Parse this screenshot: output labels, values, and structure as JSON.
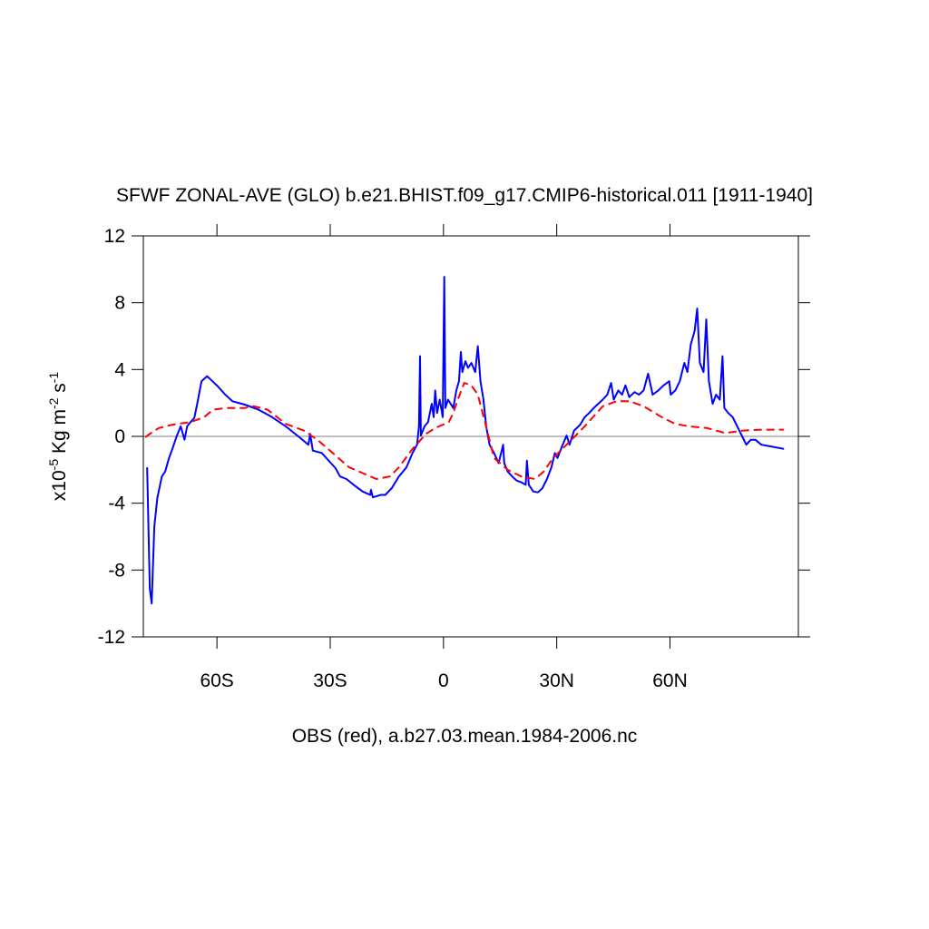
{
  "chart_data": {
    "type": "line",
    "title": "SFWF ZONAL-AVE (GLO) b.e21.BHIST.f09_g17.CMIP6-historical.011 [1911-1940]",
    "ylabel": [
      "x10",
      "-5",
      " Kg m",
      "-2",
      " s",
      "-1"
    ],
    "note": "OBS (red), a.b27.03.mean.1984-2006.nc",
    "xlim": [
      -79.5,
      94
    ],
    "ylim": [
      -12,
      12
    ],
    "xticks": [
      {
        "value": -60,
        "label": "60S"
      },
      {
        "value": -30,
        "label": "30S"
      },
      0,
      {
        "value": 30,
        "label": "30N"
      },
      {
        "value": 60,
        "label": "60N"
      }
    ],
    "yticks": [
      -12,
      -8,
      -4,
      0,
      4,
      8,
      12
    ],
    "hline": 0,
    "series": [
      {
        "color": "#0000ff",
        "dash": false,
        "x": [
          -78.5,
          -77.8,
          -77.3,
          -76.6,
          -75.8,
          -74.6,
          -73.7,
          -72.7,
          -71.8,
          -70.6,
          -69.6,
          -68.6,
          -67.9,
          -67.0,
          -66.0,
          -65.0,
          -64.1,
          -62.6,
          -61.2,
          -59.8,
          -57.8,
          -55.9,
          -52.6,
          -49.0,
          -45.4,
          -41.8,
          -38.2,
          -35.8,
          -35.3,
          -34.6,
          -32.2,
          -29.8,
          -28.6,
          -27.4,
          -25.7,
          -23.8,
          -21.4,
          -19.4,
          -19.2,
          -18.7,
          -16.6,
          -15.4,
          -13.7,
          -11.8,
          -9.8,
          -8.2,
          -7.0,
          -6.5,
          -6.2,
          -6.0,
          -5.0,
          -4.1,
          -3.1,
          -2.6,
          -2.2,
          -1.7,
          -1.0,
          -0.2,
          0.2,
          0.5,
          1.2,
          1.9,
          2.6,
          3.4,
          4.1,
          4.6,
          5.0,
          5.8,
          6.5,
          7.4,
          8.4,
          9.1,
          9.8,
          10.6,
          11.3,
          12.2,
          13.4,
          14.6,
          15.8,
          16.1,
          17.0,
          18.2,
          19.4,
          20.6,
          21.8,
          22.1,
          22.6,
          23.8,
          25.0,
          26.2,
          27.4,
          28.6,
          29.5,
          30.2,
          31.4,
          32.6,
          33.4,
          34.6,
          36.2,
          37.4,
          38.6,
          39.8,
          41.0,
          42.2,
          43.4,
          44.4,
          45.1,
          46.3,
          47.3,
          48.2,
          49.2,
          50.6,
          51.8,
          53.0,
          54.2,
          55.4,
          56.9,
          58.3,
          59.8,
          60.2,
          61.4,
          62.6,
          63.8,
          64.6,
          65.5,
          66.5,
          67.2,
          67.9,
          68.9,
          69.6,
          70.3,
          71.3,
          72.2,
          73.2,
          73.9,
          74.4,
          75.4,
          76.6,
          77.8,
          79.0,
          80.2,
          81.4,
          82.6,
          84.2,
          86.6,
          90.2
        ],
        "values": [
          -1.85,
          -9.1,
          -10.0,
          -5.4,
          -3.7,
          -2.4,
          -2.1,
          -1.3,
          -0.75,
          0.05,
          0.6,
          -0.2,
          0.6,
          0.85,
          1.1,
          2.2,
          3.3,
          3.6,
          3.3,
          3.0,
          2.5,
          2.1,
          1.9,
          1.6,
          1.15,
          0.6,
          -0.05,
          -0.5,
          0.15,
          -0.85,
          -1.0,
          -1.6,
          -1.9,
          -2.4,
          -2.55,
          -2.9,
          -3.3,
          -3.5,
          -3.2,
          -3.65,
          -3.5,
          -3.5,
          -3.1,
          -2.4,
          -1.85,
          -1.0,
          -0.5,
          0.6,
          4.8,
          0.05,
          0.6,
          0.85,
          1.95,
          1.15,
          2.75,
          1.4,
          2.2,
          1.15,
          9.55,
          1.7,
          2.2,
          1.95,
          1.7,
          2.75,
          3.3,
          5.05,
          3.85,
          4.5,
          4.1,
          4.4,
          3.85,
          5.4,
          3.3,
          2.2,
          0.6,
          -0.5,
          -1.0,
          -1.6,
          -0.5,
          -1.6,
          -2.1,
          -2.4,
          -2.65,
          -2.75,
          -2.9,
          -1.45,
          -2.9,
          -3.3,
          -3.35,
          -3.1,
          -2.55,
          -1.85,
          -1.0,
          -1.3,
          -0.6,
          0.05,
          -0.5,
          0.35,
          0.7,
          1.15,
          1.4,
          1.7,
          1.95,
          2.2,
          2.5,
          3.2,
          2.2,
          2.75,
          2.5,
          3.05,
          2.35,
          2.65,
          2.5,
          2.75,
          3.75,
          2.5,
          2.75,
          3.05,
          3.3,
          2.5,
          2.75,
          3.3,
          4.4,
          3.85,
          5.5,
          6.3,
          7.65,
          4.4,
          3.85,
          7.0,
          3.3,
          1.95,
          2.5,
          2.2,
          4.8,
          1.7,
          1.4,
          1.15,
          0.6,
          0.05,
          -0.5,
          -0.2,
          -0.2,
          -0.5,
          -0.6,
          -0.75
        ]
      },
      {
        "color": "#ff0000",
        "dash": true,
        "x": [
          -79.0,
          -77.8,
          -75.4,
          -71.8,
          -67.0,
          -63.4,
          -61.0,
          -57.4,
          -52.6,
          -50.2,
          -46.6,
          -41.8,
          -37.0,
          -33.4,
          -29.8,
          -25.0,
          -21.4,
          -17.8,
          -14.2,
          -11.8,
          -8.2,
          -4.6,
          -2.2,
          1.4,
          2.6,
          3.8,
          5.5,
          7.4,
          9.1,
          11.0,
          13.4,
          17.0,
          20.6,
          24.2,
          26.6,
          29.0,
          32.6,
          37.4,
          42.2,
          45.8,
          49.4,
          53.0,
          57.8,
          61.4,
          65.0,
          69.8,
          74.6,
          79.4,
          84.2,
          90.2
        ],
        "values": [
          -0.05,
          0.15,
          0.5,
          0.7,
          0.85,
          1.15,
          1.6,
          1.7,
          1.7,
          1.8,
          1.6,
          0.75,
          0.35,
          -0.2,
          -0.9,
          -1.85,
          -2.2,
          -2.55,
          -2.4,
          -1.85,
          -0.75,
          0.15,
          0.5,
          0.85,
          1.4,
          2.2,
          3.2,
          3.05,
          2.5,
          0.85,
          -1.3,
          -2.0,
          -2.4,
          -2.55,
          -2.1,
          -1.3,
          -0.5,
          0.6,
          1.8,
          2.1,
          2.1,
          1.8,
          1.15,
          0.75,
          0.6,
          0.5,
          0.2,
          0.35,
          0.4,
          0.4
        ]
      }
    ]
  }
}
